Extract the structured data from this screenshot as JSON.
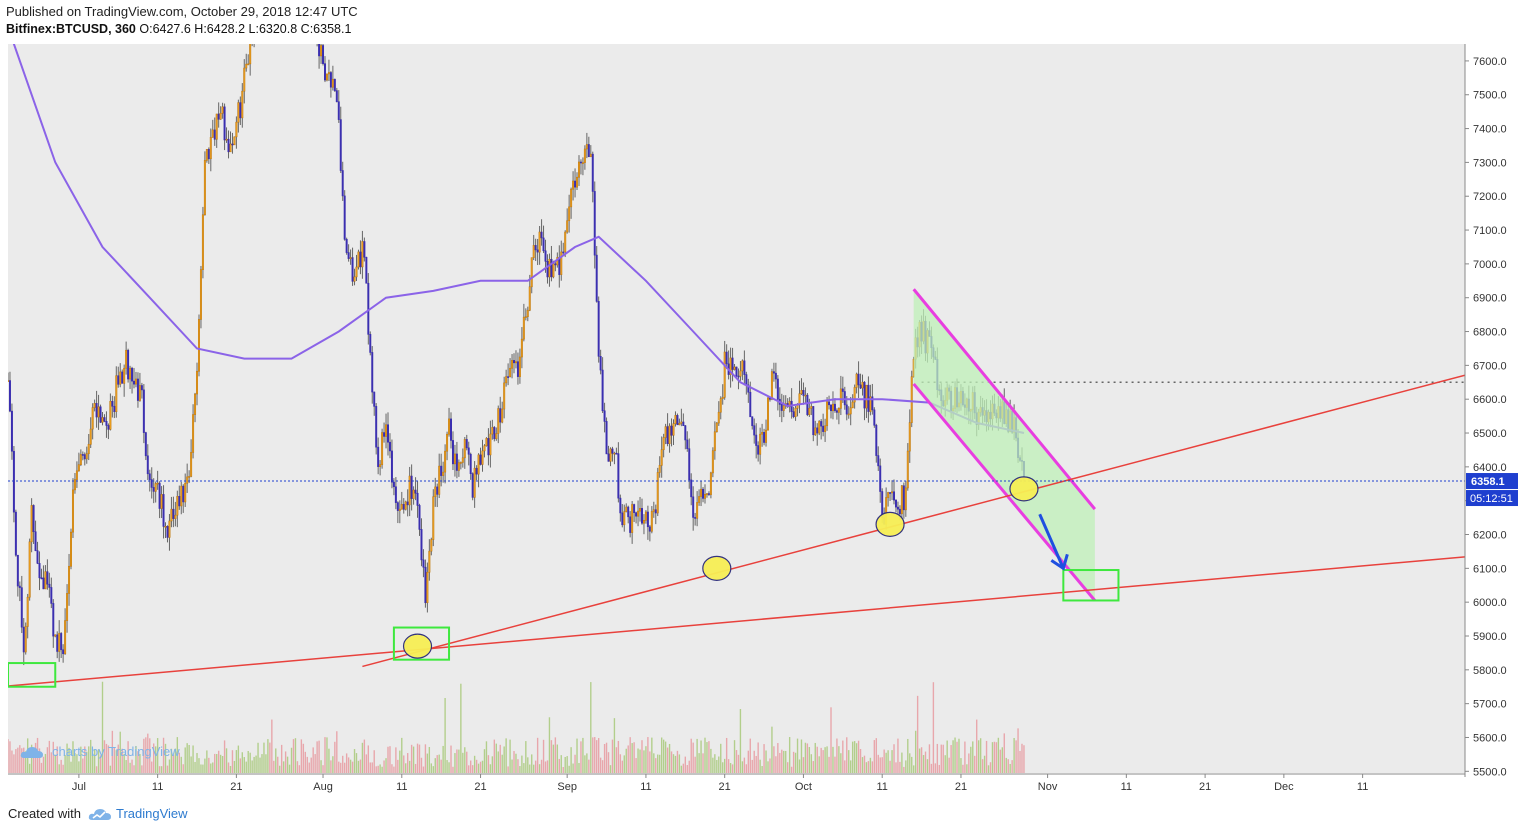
{
  "header": {
    "published_line": "Published on TradingView.com, October 29, 2018 12:47 UTC",
    "symbol": "Bitfinex:BTCUSD, 360",
    "ohlc": {
      "o_label": "O:",
      "o": "6427.6",
      "h_label": "H:",
      "h": "6428.2",
      "l_label": "L:",
      "l": "6320.8",
      "c_label": "C:",
      "c": "6358.1"
    }
  },
  "footer": {
    "created_with": "Created with",
    "brand": "TradingView"
  },
  "watermark": "charts by TradingView",
  "colors": {
    "background": "#ebebeb",
    "candle_up": "#f5a623",
    "candle_down": "#3b2fb0",
    "wick": "#666666",
    "ma_line": "#8b63e8",
    "trend_red": "#e8413c",
    "channel_magenta": "#e83ee0",
    "channel_fill": "#bff0b8",
    "box_green": "#3ee83e",
    "marker_yellow": "#f7ef55",
    "arrow_blue": "#1f4fe0",
    "price_tag": "#1f3fcf",
    "volume_up": "#a8c97a",
    "volume_down": "#e89aa0"
  },
  "chart_data": {
    "type": "line",
    "chart_kind": "candlestick",
    "x_axis": {
      "tick_labels": [
        "Jul",
        "11",
        "21",
        "Aug",
        "11",
        "21",
        "Sep",
        "11",
        "21",
        "Oct",
        "11",
        "21",
        "Nov",
        "11",
        "21",
        "Dec",
        "11"
      ],
      "tick_dates": [
        "2018-07-01",
        "2018-07-11",
        "2018-07-21",
        "2018-08-01",
        "2018-08-11",
        "2018-08-21",
        "2018-09-01",
        "2018-09-11",
        "2018-09-21",
        "2018-10-01",
        "2018-10-11",
        "2018-10-21",
        "2018-11-01",
        "2018-11-11",
        "2018-11-21",
        "2018-12-01",
        "2018-12-11"
      ],
      "range": [
        "2018-06-22",
        "2018-12-24"
      ]
    },
    "y_axis": {
      "tick_labels": [
        "7600.0",
        "7500.0",
        "7400.0",
        "7300.0",
        "7200.0",
        "7100.0",
        "7000.0",
        "6900.0",
        "6800.0",
        "6700.0",
        "6600.0",
        "6500.0",
        "6400.0",
        "6300.0",
        "6200.0",
        "6100.0",
        "6000.0",
        "5900.0",
        "5800.0",
        "5700.0",
        "5600.0",
        "5500.0"
      ],
      "ylim": [
        5495,
        7650
      ]
    },
    "current_price": "6358.1",
    "countdown": "05:12:51",
    "price_series": {
      "name": "BTCUSD close (approx.)",
      "points": [
        [
          "2018-06-22",
          6700
        ],
        [
          "2018-06-23",
          6150
        ],
        [
          "2018-06-24",
          5850
        ],
        [
          "2018-06-25",
          6250
        ],
        [
          "2018-06-26",
          6100
        ],
        [
          "2018-06-27",
          6050
        ],
        [
          "2018-06-28",
          5900
        ],
        [
          "2018-06-29",
          5850
        ],
        [
          "2018-06-30",
          6250
        ],
        [
          "2018-07-01",
          6400
        ],
        [
          "2018-07-02",
          6450
        ],
        [
          "2018-07-03",
          6600
        ],
        [
          "2018-07-04",
          6550
        ],
        [
          "2018-07-05",
          6550
        ],
        [
          "2018-07-06",
          6650
        ],
        [
          "2018-07-07",
          6700
        ],
        [
          "2018-07-08",
          6650
        ],
        [
          "2018-07-09",
          6600
        ],
        [
          "2018-07-10",
          6350
        ],
        [
          "2018-07-11",
          6350
        ],
        [
          "2018-07-12",
          6200
        ],
        [
          "2018-07-13",
          6250
        ],
        [
          "2018-07-14",
          6300
        ],
        [
          "2018-07-15",
          6350
        ],
        [
          "2018-07-16",
          6700
        ],
        [
          "2018-07-17",
          7300
        ],
        [
          "2018-07-18",
          7400
        ],
        [
          "2018-07-19",
          7450
        ],
        [
          "2018-07-20",
          7350
        ],
        [
          "2018-07-21",
          7400
        ],
        [
          "2018-07-22",
          7550
        ],
        [
          "2018-07-23",
          7700
        ],
        [
          "2018-07-24",
          8100
        ],
        [
          "2018-07-25",
          8200
        ],
        [
          "2018-07-26",
          8050
        ],
        [
          "2018-07-27",
          8100
        ],
        [
          "2018-07-28",
          8200
        ],
        [
          "2018-07-29",
          8200
        ],
        [
          "2018-07-30",
          7900
        ],
        [
          "2018-07-31",
          7700
        ],
        [
          "2018-08-01",
          7600
        ],
        [
          "2018-08-02",
          7550
        ],
        [
          "2018-08-03",
          7400
        ],
        [
          "2018-08-04",
          7000
        ],
        [
          "2018-08-05",
          6950
        ],
        [
          "2018-08-06",
          7050
        ],
        [
          "2018-08-07",
          6750
        ],
        [
          "2018-08-08",
          6400
        ],
        [
          "2018-08-09",
          6550
        ],
        [
          "2018-08-10",
          6300
        ],
        [
          "2018-08-11",
          6250
        ],
        [
          "2018-08-12",
          6350
        ],
        [
          "2018-08-13",
          6300
        ],
        [
          "2018-08-14",
          6000
        ],
        [
          "2018-08-15",
          6300
        ],
        [
          "2018-08-16",
          6400
        ],
        [
          "2018-08-17",
          6500
        ],
        [
          "2018-08-18",
          6400
        ],
        [
          "2018-08-19",
          6450
        ],
        [
          "2018-08-20",
          6350
        ],
        [
          "2018-08-21",
          6450
        ],
        [
          "2018-08-22",
          6450
        ],
        [
          "2018-08-23",
          6500
        ],
        [
          "2018-08-24",
          6650
        ],
        [
          "2018-08-25",
          6700
        ],
        [
          "2018-08-26",
          6700
        ],
        [
          "2018-08-27",
          6900
        ],
        [
          "2018-08-28",
          7050
        ],
        [
          "2018-08-29",
          7050
        ],
        [
          "2018-08-30",
          6950
        ],
        [
          "2018-08-31",
          7000
        ],
        [
          "2018-09-01",
          7150
        ],
        [
          "2018-09-02",
          7250
        ],
        [
          "2018-09-03",
          7300
        ],
        [
          "2018-09-04",
          7350
        ],
        [
          "2018-09-05",
          6750
        ],
        [
          "2018-09-06",
          6450
        ],
        [
          "2018-09-07",
          6450
        ],
        [
          "2018-09-08",
          6250
        ],
        [
          "2018-09-09",
          6250
        ],
        [
          "2018-09-10",
          6300
        ],
        [
          "2018-09-11",
          6250
        ],
        [
          "2018-09-12",
          6250
        ],
        [
          "2018-09-13",
          6450
        ],
        [
          "2018-09-14",
          6500
        ],
        [
          "2018-09-15",
          6550
        ],
        [
          "2018-09-16",
          6500
        ],
        [
          "2018-09-17",
          6250
        ],
        [
          "2018-09-18",
          6300
        ],
        [
          "2018-09-19",
          6350
        ],
        [
          "2018-09-20",
          6500
        ],
        [
          "2018-09-21",
          6700
        ],
        [
          "2018-09-22",
          6700
        ],
        [
          "2018-09-23",
          6700
        ],
        [
          "2018-09-24",
          6600
        ],
        [
          "2018-09-25",
          6450
        ],
        [
          "2018-09-26",
          6500
        ],
        [
          "2018-09-27",
          6650
        ],
        [
          "2018-09-28",
          6600
        ],
        [
          "2018-09-29",
          6550
        ],
        [
          "2018-09-30",
          6600
        ],
        [
          "2018-10-01",
          6600
        ],
        [
          "2018-10-02",
          6550
        ],
        [
          "2018-10-03",
          6500
        ],
        [
          "2018-10-04",
          6550
        ],
        [
          "2018-10-05",
          6600
        ],
        [
          "2018-10-06",
          6600
        ],
        [
          "2018-10-07",
          6600
        ],
        [
          "2018-10-08",
          6650
        ],
        [
          "2018-10-09",
          6600
        ],
        [
          "2018-10-10",
          6550
        ],
        [
          "2018-10-11",
          6250
        ],
        [
          "2018-10-12",
          6300
        ],
        [
          "2018-10-13",
          6300
        ],
        [
          "2018-10-14",
          6300
        ],
        [
          "2018-10-15",
          6750
        ],
        [
          "2018-10-16",
          6800
        ],
        [
          "2018-10-17",
          6750
        ],
        [
          "2018-10-18",
          6650
        ],
        [
          "2018-10-19",
          6600
        ],
        [
          "2018-10-20",
          6600
        ],
        [
          "2018-10-21",
          6600
        ],
        [
          "2018-10-22",
          6600
        ],
        [
          "2018-10-23",
          6550
        ],
        [
          "2018-10-24",
          6550
        ],
        [
          "2018-10-25",
          6550
        ],
        [
          "2018-10-26",
          6550
        ],
        [
          "2018-10-27",
          6550
        ],
        [
          "2018-10-28",
          6500
        ],
        [
          "2018-10-29",
          6358.1
        ]
      ]
    },
    "moving_average": {
      "name": "MA",
      "points": [
        [
          "2018-06-22",
          7700
        ],
        [
          "2018-06-28",
          7300
        ],
        [
          "2018-07-04",
          7050
        ],
        [
          "2018-07-10",
          6900
        ],
        [
          "2018-07-16",
          6750
        ],
        [
          "2018-07-22",
          6720
        ],
        [
          "2018-07-28",
          6720
        ],
        [
          "2018-08-03",
          6800
        ],
        [
          "2018-08-09",
          6900
        ],
        [
          "2018-08-15",
          6920
        ],
        [
          "2018-08-21",
          6950
        ],
        [
          "2018-08-27",
          6950
        ],
        [
          "2018-09-02",
          7050
        ],
        [
          "2018-09-05",
          7080
        ],
        [
          "2018-09-11",
          6950
        ],
        [
          "2018-09-17",
          6800
        ],
        [
          "2018-09-23",
          6650
        ],
        [
          "2018-09-29",
          6580
        ],
        [
          "2018-10-05",
          6600
        ],
        [
          "2018-10-11",
          6600
        ],
        [
          "2018-10-17",
          6590
        ],
        [
          "2018-10-23",
          6530
        ],
        [
          "2018-10-29",
          6500
        ]
      ]
    },
    "annotations": {
      "support_lines": [
        {
          "from": [
            "2018-06-22",
            5752
          ],
          "to": [
            "2018-12-24",
            6134
          ]
        },
        {
          "from": [
            "2018-08-06",
            5810
          ],
          "to": [
            "2018-12-24",
            6671
          ]
        }
      ],
      "resistance_level": 6650,
      "channel": {
        "upper": {
          "from": [
            "2018-10-15",
            6925
          ],
          "to": [
            "2018-11-07",
            6275
          ]
        },
        "lower": {
          "from": [
            "2018-10-15",
            6645
          ],
          "to": [
            "2018-11-07",
            6005
          ]
        }
      },
      "touch_points": [
        [
          "2018-08-13",
          5870
        ],
        [
          "2018-09-20",
          6100
        ],
        [
          "2018-10-12",
          6230
        ],
        [
          "2018-10-29",
          6335
        ]
      ],
      "target_boxes": [
        {
          "x": [
            "2018-06-22",
            "2018-06-28"
          ],
          "y": [
            5750,
            5820
          ]
        },
        {
          "x": [
            "2018-08-10",
            "2018-08-17"
          ],
          "y": [
            5830,
            5925
          ]
        },
        {
          "x": [
            "2018-11-03",
            "2018-11-10"
          ],
          "y": [
            6005,
            6095
          ]
        }
      ],
      "projection_arrow": {
        "from": [
          "2018-10-31",
          6260
        ],
        "to": [
          "2018-11-03",
          6100
        ]
      }
    }
  }
}
